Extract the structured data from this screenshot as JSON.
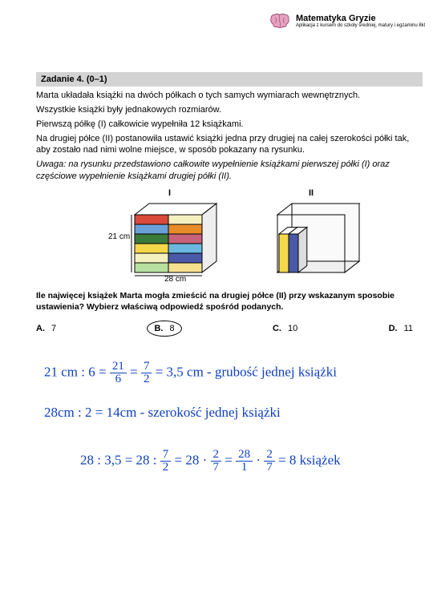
{
  "brand": {
    "title": "Matematyka Gryzie",
    "sub": "Aplikacja z kursem do szkoły średniej, matury i egzaminu 8kl"
  },
  "task": {
    "header": "Zadanie 4. (0–1)",
    "p1": "Marta układała książki na dwóch półkach o tych samych wymiarach wewnętrznych.",
    "p2": "Wszystkie książki były jednakowych rozmiarów.",
    "p3": "Pierwszą półkę (I) całkowicie wypełniła 12 książkami.",
    "p4": "Na drugiej półce (II) postanowiła ustawić książki jedna przy drugiej na całej szerokości półki tak, aby zostało nad nimi wolne miejsce, w sposób pokazany na rysunku.",
    "note": "Uwaga: na rysunku przedstawiono całkowite wypełnienie książkami pierwszej półki (I) oraz częściowe wypełnienie książkami drugiej półki (II)."
  },
  "figure": {
    "roman1": "I",
    "roman2": "II",
    "dim_v": "21 cm",
    "dim_h": "28 cm",
    "shelf1_colors": [
      [
        "#d94a3a",
        "#f5f0c0"
      ],
      [
        "#6aa0d8",
        "#e88c2a"
      ],
      [
        "#3a7a3a",
        "#c7627a"
      ],
      [
        "#f5d84a",
        "#6ab8e0"
      ],
      [
        "#f5f0c0",
        "#4a5aa8"
      ],
      [
        "#b8e0a0",
        "#f5e090"
      ]
    ],
    "shelf2_colors": [
      "#f5d84a",
      "#4a5aa8"
    ]
  },
  "question": "Ile najwięcej książek Marta mogła zmieścić na drugiej półce (II) przy wskazanym sposobie ustawienia? Wybierz właściwą odpowiedź spośród podanych.",
  "answers": {
    "a": {
      "letter": "A.",
      "val": "7"
    },
    "b": {
      "letter": "B.",
      "val": "8"
    },
    "c": {
      "letter": "C.",
      "val": "10"
    },
    "d": {
      "letter": "D.",
      "val": "11"
    }
  },
  "hw": {
    "l1a": "21 cm : 6 = ",
    "l1f1n": "21",
    "l1f1d": "6",
    "l1b": " = ",
    "l1f2n": "7",
    "l1f2d": "2",
    "l1c": " = 3,5 cm - grubość jednej książki",
    "l2": "28cm : 2 = 14cm - szerokość jednej książki",
    "l3a": "28 : 3,5 =  28 : ",
    "l3f1n": "7",
    "l3f1d": "2",
    "l3b": " =  28 · ",
    "l3f2n": "2",
    "l3f2d": "7",
    "l3c": " = ",
    "l3f3n": "28",
    "l3f3d": "1",
    "l3d": " · ",
    "l3f4n": "2",
    "l3f4d": "7",
    "l3e": " = 8  książek"
  }
}
